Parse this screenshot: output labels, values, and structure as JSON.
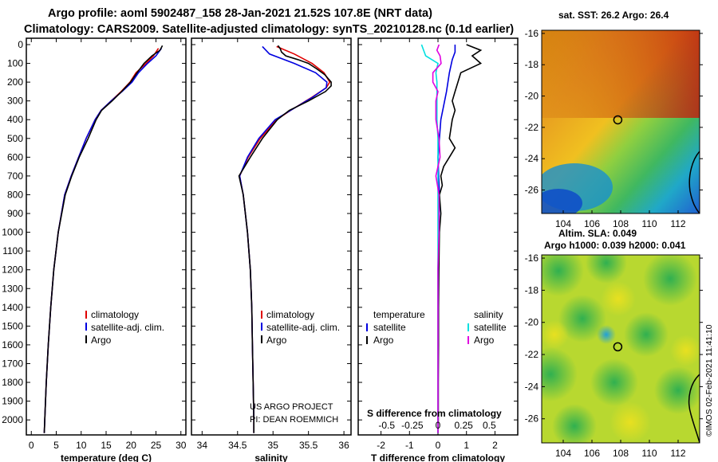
{
  "header": {
    "line1": "Argo profile: aoml 5902487_158 28-Jan-2021 21.52S 107.8E (NRT data)",
    "line2": "Climatology: CARS2009. Satellite-adjusted climatology: synTS_20210128.nc (0.1d earlier)"
  },
  "colors": {
    "climatology": "#e00000",
    "satellite": "#0000e0",
    "argo": "#000000",
    "sat_t": "#00e0e0",
    "argo_s": "#e000e0"
  },
  "credit": {
    "line1": "US ARGO PROJECT",
    "line2": "PI: DEAN ROEMMICH"
  },
  "timestamp": "©IMOS 02-Feb-2021 11:41:10",
  "chart_data": [
    {
      "type": "line",
      "name": "temperature-profile",
      "xlabel": "temperature (deg C)",
      "ylabel": "",
      "xlim": [
        -1,
        31
      ],
      "ylim": [
        2080,
        0
      ],
      "xticks": [
        0,
        5,
        10,
        15,
        20,
        25,
        30
      ],
      "yticks": [
        0,
        100,
        200,
        300,
        400,
        500,
        600,
        700,
        800,
        900,
        1000,
        1100,
        1200,
        1300,
        1400,
        1500,
        1600,
        1700,
        1800,
        1900,
        2000
      ],
      "legend": {
        "position": "center-right",
        "entries": [
          "climatology",
          "satellite-adj. clim.",
          "Argo"
        ]
      },
      "series": [
        {
          "name": "climatology",
          "depth": [
            20,
            60,
            100,
            150,
            200,
            250,
            300,
            350,
            400,
            500,
            600,
            700,
            800,
            1000,
            1200,
            1400,
            1600,
            1800,
            2000,
            2070
          ],
          "values": [
            25.5,
            24.5,
            23.0,
            21.0,
            19.8,
            18.0,
            16.0,
            14.0,
            12.8,
            11.0,
            9.5,
            8.0,
            6.7,
            5.4,
            4.5,
            3.9,
            3.4,
            3.0,
            2.7,
            2.6
          ]
        },
        {
          "name": "satellite-adj. clim.",
          "depth": [
            20,
            60,
            100,
            150,
            200,
            250,
            300,
            350,
            400,
            500,
            600,
            700,
            800,
            1000,
            1200,
            1400,
            1600,
            1800,
            2000,
            2070
          ],
          "values": [
            26.1,
            25.0,
            23.3,
            21.5,
            20.2,
            18.2,
            16.0,
            14.0,
            12.8,
            11.0,
            9.5,
            8.0,
            6.7,
            5.4,
            4.5,
            3.9,
            3.4,
            3.0,
            2.7,
            2.6
          ]
        },
        {
          "name": "Argo",
          "depth": [
            5,
            30,
            60,
            100,
            150,
            200,
            250,
            300,
            350,
            400,
            500,
            600,
            700,
            800,
            1000,
            1200,
            1400,
            1600,
            1800,
            2000,
            2070
          ],
          "values": [
            26.3,
            25.8,
            24.2,
            22.6,
            21.2,
            19.9,
            18.1,
            16.2,
            14.1,
            13.0,
            11.4,
            9.6,
            8.1,
            6.8,
            5.4,
            4.5,
            3.9,
            3.4,
            3.0,
            2.7,
            2.6
          ]
        }
      ]
    },
    {
      "type": "line",
      "name": "salinity-profile",
      "xlabel": "salinity",
      "xlim": [
        33.85,
        36.1
      ],
      "ylim": [
        2080,
        0
      ],
      "xticks": [
        34,
        34.5,
        35,
        35.5,
        36
      ],
      "legend": {
        "position": "center-right",
        "entries": [
          "climatology",
          "satellite-adj. clim.",
          "Argo"
        ]
      },
      "series": [
        {
          "name": "climatology",
          "depth": [
            10,
            50,
            100,
            150,
            200,
            230,
            280,
            350,
            400,
            500,
            600,
            700,
            800,
            1000,
            1200,
            1400,
            1600,
            1800,
            2000,
            2070
          ],
          "values": [
            35.05,
            35.3,
            35.55,
            35.72,
            35.8,
            35.75,
            35.55,
            35.25,
            35.05,
            34.82,
            34.65,
            34.53,
            34.58,
            34.64,
            34.68,
            34.7,
            34.71,
            34.72,
            34.73,
            34.73
          ]
        },
        {
          "name": "satellite-adj. clim.",
          "depth": [
            10,
            50,
            100,
            150,
            200,
            230,
            280,
            350,
            400,
            500,
            600,
            700,
            800,
            1000,
            1200,
            1400,
            1600,
            1800,
            2000,
            2070
          ],
          "values": [
            34.85,
            34.95,
            35.3,
            35.6,
            35.76,
            35.75,
            35.56,
            35.25,
            35.03,
            34.8,
            34.64,
            34.53,
            34.58,
            34.64,
            34.68,
            34.7,
            34.71,
            34.72,
            34.73,
            34.73
          ]
        },
        {
          "name": "Argo",
          "depth": [
            5,
            20,
            40,
            60,
            80,
            100,
            130,
            160,
            200,
            220,
            250,
            300,
            350,
            400,
            500,
            600,
            700,
            800,
            1000,
            1200,
            1400,
            1600,
            1800,
            2000,
            2070
          ],
          "values": [
            35.07,
            35.1,
            35.12,
            35.18,
            35.35,
            35.5,
            35.62,
            35.73,
            35.82,
            35.82,
            35.74,
            35.5,
            35.23,
            35.06,
            34.85,
            34.68,
            34.52,
            34.58,
            34.64,
            34.68,
            34.7,
            34.71,
            34.72,
            34.73,
            34.73
          ]
        }
      ]
    },
    {
      "type": "line",
      "name": "difference-profile",
      "xlabel": "T difference from climatology",
      "xlim": [
        -2.8,
        2.8
      ],
      "ylim": [
        2080,
        0
      ],
      "xticks": [
        -2,
        -1,
        0,
        1,
        2
      ],
      "secondary_axis": {
        "label": "S difference from climatology",
        "ticks": [
          "-0.5",
          "-0.25",
          "0",
          "0.25",
          "0.5"
        ]
      },
      "legend": {
        "position": "center",
        "entries": [
          "temperature",
          "salinity",
          "satellite",
          "Argo",
          "satellite",
          "Argo"
        ]
      },
      "series": [
        {
          "name": "T satellite",
          "depth": [
            0,
            40,
            80,
            150,
            250,
            400,
            600,
            800,
            1200,
            2000,
            2070
          ],
          "values": [
            0.6,
            0.6,
            0.5,
            0.4,
            0.3,
            0.1,
            0,
            0.05,
            0,
            0,
            0
          ]
        },
        {
          "name": "T Argo",
          "depth": [
            0,
            30,
            60,
            100,
            150,
            200,
            250,
            300,
            350,
            400,
            500,
            550,
            600,
            650,
            700,
            750,
            800,
            900,
            1000,
            1200,
            1400,
            1600,
            1800,
            2000,
            2070
          ],
          "values": [
            1.0,
            1.5,
            1.2,
            1.5,
            0.8,
            0.7,
            0.6,
            0.5,
            0.6,
            0.5,
            0.4,
            0.6,
            0.4,
            0.2,
            0.1,
            0.15,
            0.05,
            0.1,
            0.05,
            0.03,
            0.02,
            0.02,
            0.01,
            0.01,
            0
          ]
        },
        {
          "name": "S satellite",
          "depth": [
            0,
            30,
            60,
            100,
            150,
            200,
            300,
            400,
            500,
            600,
            700,
            800,
            1000,
            2000,
            2070
          ],
          "values": [
            -0.16,
            -0.14,
            -0.12,
            0.0,
            -0.02,
            -0.01,
            -0.01,
            -0.01,
            0,
            0,
            0,
            0,
            0,
            0,
            0
          ]
        },
        {
          "name": "S Argo",
          "depth": [
            0,
            30,
            60,
            100,
            150,
            200,
            250,
            300,
            400,
            500,
            600,
            700,
            800,
            1000,
            1200,
            1400,
            1600,
            1800,
            2000,
            2070
          ],
          "values": [
            0.01,
            -0.01,
            0.02,
            0.03,
            -0.05,
            -0.05,
            0.0,
            -0.02,
            -0.02,
            0.01,
            0.02,
            -0.02,
            0.01,
            0.01,
            0,
            0,
            0,
            0,
            0,
            0
          ]
        }
      ]
    },
    {
      "type": "heatmap",
      "name": "sst-map",
      "title": "sat. SST: 26.2 Argo: 26.4",
      "xticks": [
        104,
        106,
        108,
        110,
        112
      ],
      "yticks": [
        -16,
        -18,
        -20,
        -22,
        -24,
        -26
      ],
      "xlim": [
        102.5,
        113.5
      ],
      "ylim": [
        -27.5,
        -15.8
      ],
      "float_position": {
        "lon": 107.8,
        "lat": -21.52
      }
    },
    {
      "type": "heatmap",
      "name": "sla-map",
      "title": "Altim. SLA: 0.049",
      "subtitle": "Argo h1000: 0.039 h2000: 0.041",
      "xticks": [
        104,
        106,
        108,
        110,
        112
      ],
      "yticks": [
        -16,
        -18,
        -20,
        -22,
        -24,
        -26
      ],
      "xlim": [
        102.5,
        113.5
      ],
      "ylim": [
        -27.5,
        -15.8
      ],
      "float_position": {
        "lon": 107.8,
        "lat": -21.52
      }
    }
  ]
}
